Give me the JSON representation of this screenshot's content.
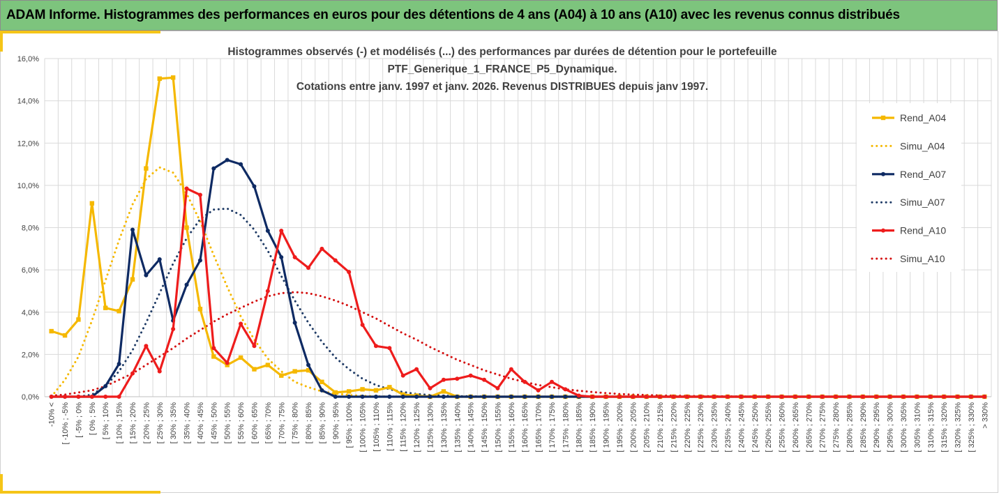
{
  "banner": {
    "title": "ADAM Informe. Histogrammes des performances en euros pour des détentions de 4 ans (A04) à 10 ans (A10) avec les revenus connus distribués"
  },
  "colors": {
    "banner_bg": "#7dc47d",
    "accent": "#f5c518",
    "a04": "#f5b800",
    "a07": "#0e2a63",
    "a10": "#ee1c1c",
    "grid": "#d9d9d9"
  },
  "chart_data": {
    "type": "line",
    "title_lines": [
      "Histogrammes observés (-) et modélisés (...) des performances par durées de détention pour le portefeuille",
      "PTF_Generique_1_FRANCE_P5_Dynamique.",
      "Cotations entre janv. 1997 et janv. 2026. Revenus DISTRIBUES depuis janv 1997."
    ],
    "ylim": [
      0,
      16
    ],
    "y_ticks": [
      "0,0%",
      "2,0%",
      "4,0%",
      "6,0%",
      "8,0%",
      "10,0%",
      "12,0%",
      "14,0%",
      "16,0%"
    ],
    "categories": [
      "-10% <",
      "[ -10% ; -5%",
      "[ -5% ; 0%",
      "[ 0% ; 5%",
      "[ 5% ; 10%",
      "[ 10% ; 15%",
      "[ 15% ; 20%",
      "[ 20% ; 25%",
      "[ 25% ; 30%",
      "[ 30% ; 35%",
      "[ 35% ; 40%",
      "[ 40% ; 45%",
      "[ 45% ; 50%",
      "[ 50% ; 55%",
      "[ 55% ; 60%",
      "[ 60% ; 65%",
      "[ 65% ; 70%",
      "[ 70% ; 75%",
      "[ 75% ; 80%",
      "[ 80% ; 85%",
      "[ 85% ; 90%",
      "[ 90% ; 95%",
      "[ 95% ; 100%",
      "[ 100% ; 105%",
      "[ 105% ; 110%",
      "[ 110% ; 115%",
      "[ 115% ; 120%",
      "[ 120% ; 125%",
      "[ 125% ; 130%",
      "[ 130% ; 135%",
      "[ 135% ; 140%",
      "[ 140% ; 145%",
      "[ 145% ; 150%",
      "[ 150% ; 155%",
      "[ 155% ; 160%",
      "[ 160% ; 165%",
      "[ 165% ; 170%",
      "[ 170% ; 175%",
      "[ 175% ; 180%",
      "[ 180% ; 185%",
      "[ 185% ; 190%",
      "[ 190% ; 195%",
      "[ 195% ; 200%",
      "[ 200% ; 205%",
      "[ 205% ; 210%",
      "[ 210% ; 215%",
      "[ 215% ; 220%",
      "[ 220% ; 225%",
      "[ 225% ; 230%",
      "[ 230% ; 235%",
      "[ 235% ; 240%",
      "[ 240% ; 245%",
      "[ 245% ; 250%",
      "[ 250% ; 255%",
      "[ 255% ; 260%",
      "[ 260% ; 265%",
      "[ 265% ; 270%",
      "[ 270% ; 275%",
      "[ 275% ; 280%",
      "[ 280% ; 285%",
      "[ 285% ; 290%",
      "[ 290% ; 295%",
      "[ 295% ; 300%",
      "[ 300% ; 305%",
      "[ 305% ; 310%",
      "[ 310% ; 315%",
      "[ 315% ; 320%",
      "[ 320% ; 325%",
      "[ 325% ; 330%",
      "> 330%"
    ],
    "series": [
      {
        "name": "Rend_A04",
        "style": "solid",
        "marker": "square",
        "color": "#f5b800",
        "values": [
          3.1,
          2.9,
          3.65,
          9.15,
          4.2,
          4.05,
          5.55,
          10.8,
          15.05,
          15.1,
          8.0,
          4.15,
          1.9,
          1.5,
          1.85,
          1.3,
          1.5,
          1.0,
          1.2,
          1.25,
          0.7,
          0.2,
          0.25,
          0.35,
          0.3,
          0.45,
          0.1,
          0.05,
          0.0,
          0.25,
          0,
          0,
          0,
          0,
          0,
          0,
          0,
          0,
          0,
          0,
          0,
          0,
          0,
          0,
          0,
          0,
          0,
          0,
          0,
          0,
          0,
          0,
          0,
          0,
          0,
          0,
          0,
          0,
          0,
          0,
          0,
          0,
          0,
          0,
          0,
          0,
          0,
          0,
          0,
          0
        ]
      },
      {
        "name": "Simu_A04",
        "style": "dotted",
        "marker": "none",
        "color": "#f5b800",
        "values": [
          0.0,
          0.8,
          1.9,
          3.6,
          5.5,
          7.4,
          9.1,
          10.3,
          10.85,
          10.6,
          9.6,
          8.3,
          6.7,
          5.2,
          3.8,
          2.7,
          1.8,
          1.2,
          0.7,
          0.45,
          0.25,
          0.15,
          0.08,
          0.04,
          0.02,
          0.01,
          0,
          0,
          0,
          0,
          0,
          0,
          0,
          0,
          0,
          0,
          0,
          0,
          0,
          0,
          0,
          0,
          0,
          0,
          0,
          0,
          0,
          0,
          0,
          0,
          0,
          0,
          0,
          0,
          0,
          0,
          0,
          0,
          0,
          0,
          0,
          0,
          0,
          0,
          0,
          0,
          0,
          0,
          0,
          0
        ]
      },
      {
        "name": "Rend_A07",
        "style": "solid",
        "marker": "circle",
        "color": "#0e2a63",
        "values": [
          0,
          0,
          0,
          0.0,
          0.5,
          1.55,
          7.9,
          5.75,
          6.5,
          3.6,
          5.3,
          6.45,
          10.8,
          11.2,
          11.0,
          9.95,
          7.85,
          6.6,
          3.5,
          1.5,
          0.3,
          0,
          0,
          0,
          0,
          0,
          0,
          0,
          0,
          0,
          0,
          0,
          0,
          0,
          0,
          0,
          0,
          0,
          0,
          0,
          0,
          0,
          0,
          0,
          0,
          0,
          0,
          0,
          0,
          0,
          0,
          0,
          0,
          0,
          0,
          0,
          0,
          0,
          0,
          0,
          0,
          0,
          0,
          0,
          0,
          0,
          0,
          0,
          0,
          0
        ]
      },
      {
        "name": "Simu_A07",
        "style": "dotted",
        "marker": "none",
        "color": "#1f3b66",
        "values": [
          0,
          0,
          0,
          0.1,
          0.5,
          1.2,
          2.2,
          3.5,
          4.9,
          6.3,
          7.5,
          8.4,
          8.85,
          8.9,
          8.6,
          7.9,
          6.9,
          5.7,
          4.55,
          3.5,
          2.6,
          1.85,
          1.3,
          0.85,
          0.55,
          0.35,
          0.22,
          0.13,
          0.08,
          0.05,
          0.03,
          0.02,
          0.01,
          0,
          0,
          0,
          0,
          0,
          0,
          0,
          0,
          0,
          0,
          0,
          0,
          0,
          0,
          0,
          0,
          0,
          0,
          0,
          0,
          0,
          0,
          0,
          0,
          0,
          0,
          0,
          0,
          0,
          0,
          0,
          0,
          0,
          0,
          0,
          0,
          0
        ]
      },
      {
        "name": "Rend_A10",
        "style": "solid",
        "marker": "circle",
        "color": "#ee1c1c",
        "values": [
          0,
          0,
          0,
          0,
          0,
          0,
          1.1,
          2.4,
          1.2,
          3.2,
          9.85,
          9.55,
          2.3,
          1.6,
          3.45,
          2.4,
          5.0,
          7.85,
          6.6,
          6.1,
          7.0,
          6.45,
          5.9,
          3.4,
          2.4,
          2.3,
          1.0,
          1.3,
          0.4,
          0.8,
          0.85,
          1.0,
          0.8,
          0.4,
          1.3,
          0.7,
          0.3,
          0.7,
          0.35,
          0.05,
          0,
          0,
          0,
          0,
          0,
          0,
          0,
          0,
          0,
          0,
          0,
          0,
          0,
          0,
          0,
          0,
          0,
          0,
          0,
          0,
          0,
          0,
          0,
          0,
          0,
          0,
          0,
          0,
          0,
          0
        ]
      },
      {
        "name": "Simu_A10",
        "style": "dotted",
        "marker": "none",
        "color": "#d40f0f",
        "values": [
          0.05,
          0.1,
          0.2,
          0.3,
          0.5,
          0.8,
          1.1,
          1.5,
          1.9,
          2.3,
          2.75,
          3.15,
          3.55,
          3.9,
          4.2,
          4.5,
          4.75,
          4.9,
          4.95,
          4.9,
          4.75,
          4.55,
          4.3,
          4.0,
          3.7,
          3.35,
          3.0,
          2.7,
          2.35,
          2.05,
          1.75,
          1.5,
          1.25,
          1.05,
          0.85,
          0.7,
          0.55,
          0.45,
          0.35,
          0.28,
          0.22,
          0.17,
          0.13,
          0.1,
          0.08,
          0.06,
          0.05,
          0.04,
          0.03,
          0.02,
          0.02,
          0.01,
          0.01,
          0.01,
          0,
          0,
          0,
          0,
          0,
          0,
          0,
          0,
          0,
          0,
          0,
          0,
          0,
          0,
          0,
          0
        ]
      }
    ],
    "legend_position": "right"
  }
}
